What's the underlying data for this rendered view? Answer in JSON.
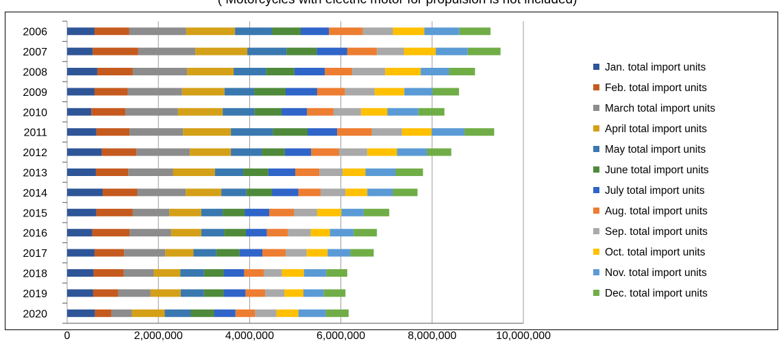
{
  "subtitle": "( Motorcycles with electric motor for propulsion  is not included)",
  "chart_data": {
    "type": "bar",
    "orientation": "horizontal",
    "stacked": true,
    "categories": [
      "2006",
      "2007",
      "2008",
      "2009",
      "2010",
      "2011",
      "2012",
      "2013",
      "2014",
      "2015",
      "2016",
      "2017",
      "2018",
      "2019",
      "2020"
    ],
    "xlim": [
      0,
      10000000
    ],
    "xticks": [
      "0",
      "2,000,000",
      "4,000,000",
      "6,000,000",
      "8,000,000",
      "10,000,000"
    ],
    "xtick_values": [
      0,
      2000000,
      4000000,
      6000000,
      8000000,
      10000000
    ],
    "grid": "vertical",
    "legend_position": "right",
    "series": [
      {
        "name": "Jan. total import units",
        "color": "#2E5597",
        "values": [
          600000,
          560000,
          660000,
          600000,
          530000,
          640000,
          760000,
          630000,
          780000,
          640000,
          550000,
          600000,
          580000,
          570000,
          610000
        ]
      },
      {
        "name": "Feb. total import units",
        "color": "#C55A1E",
        "values": [
          760000,
          1000000,
          780000,
          730000,
          750000,
          730000,
          760000,
          710000,
          760000,
          800000,
          820000,
          650000,
          660000,
          550000,
          360000
        ]
      },
      {
        "name": "March total import units",
        "color": "#8C8C8C",
        "values": [
          1250000,
          1250000,
          1190000,
          1190000,
          1150000,
          1170000,
          1170000,
          980000,
          1060000,
          800000,
          910000,
          900000,
          660000,
          710000,
          450000
        ]
      },
      {
        "name": "April total import units",
        "color": "#D4A017",
        "values": [
          1070000,
          1140000,
          1020000,
          930000,
          980000,
          1050000,
          900000,
          920000,
          780000,
          700000,
          660000,
          620000,
          580000,
          660000,
          720000
        ]
      },
      {
        "name": "May total import units",
        "color": "#3A78B0",
        "values": [
          810000,
          860000,
          710000,
          650000,
          700000,
          920000,
          680000,
          620000,
          550000,
          470000,
          500000,
          500000,
          520000,
          510000,
          570000
        ]
      },
      {
        "name": "June total import units",
        "color": "#4E8A3A",
        "values": [
          630000,
          660000,
          620000,
          690000,
          590000,
          760000,
          500000,
          550000,
          560000,
          480000,
          480000,
          510000,
          430000,
          430000,
          510000
        ]
      },
      {
        "name": "July total import units",
        "color": "#2F64C8",
        "values": [
          620000,
          670000,
          670000,
          690000,
          560000,
          650000,
          580000,
          590000,
          580000,
          540000,
          460000,
          500000,
          450000,
          480000,
          470000
        ]
      },
      {
        "name": "Aug. total import units",
        "color": "#ED7D31",
        "values": [
          740000,
          650000,
          600000,
          610000,
          580000,
          760000,
          610000,
          530000,
          490000,
          540000,
          460000,
          510000,
          430000,
          430000,
          430000
        ]
      },
      {
        "name": "Sep. total import units",
        "color": "#A9A9A9",
        "values": [
          660000,
          590000,
          720000,
          650000,
          600000,
          660000,
          620000,
          510000,
          540000,
          510000,
          500000,
          460000,
          400000,
          420000,
          470000
        ]
      },
      {
        "name": "Oct. total import units",
        "color": "#FFC000",
        "values": [
          690000,
          700000,
          780000,
          650000,
          580000,
          650000,
          650000,
          500000,
          480000,
          530000,
          420000,
          460000,
          480000,
          420000,
          480000
        ]
      },
      {
        "name": "Nov. total import units",
        "color": "#5B9BD5",
        "values": [
          770000,
          700000,
          620000,
          620000,
          680000,
          720000,
          660000,
          660000,
          560000,
          490000,
          520000,
          500000,
          490000,
          440000,
          600000
        ]
      },
      {
        "name": "Dec. total import units",
        "color": "#70AD47",
        "values": [
          680000,
          720000,
          570000,
          580000,
          570000,
          650000,
          530000,
          600000,
          540000,
          560000,
          510000,
          510000,
          460000,
          480000,
          500000
        ]
      }
    ]
  }
}
